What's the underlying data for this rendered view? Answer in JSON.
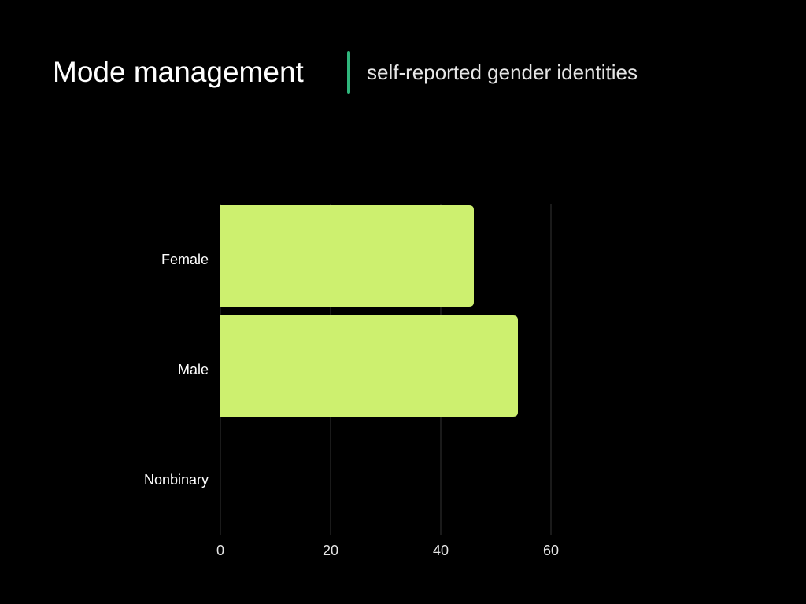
{
  "header": {
    "title": "Mode management",
    "subtitle": "self-reported gender identities",
    "accent_color": "#2fb67c"
  },
  "chart_data": {
    "type": "bar",
    "orientation": "horizontal",
    "title": "",
    "xlabel": "",
    "ylabel": "",
    "categories": [
      "Female",
      "Male",
      "Nonbinary"
    ],
    "values": [
      46,
      54,
      0
    ],
    "xlim": [
      0,
      60
    ],
    "xticks": [
      "0",
      "20",
      "40",
      "60"
    ],
    "grid": true,
    "bar_color": "#cdf06f",
    "grid_color": "#333333"
  }
}
